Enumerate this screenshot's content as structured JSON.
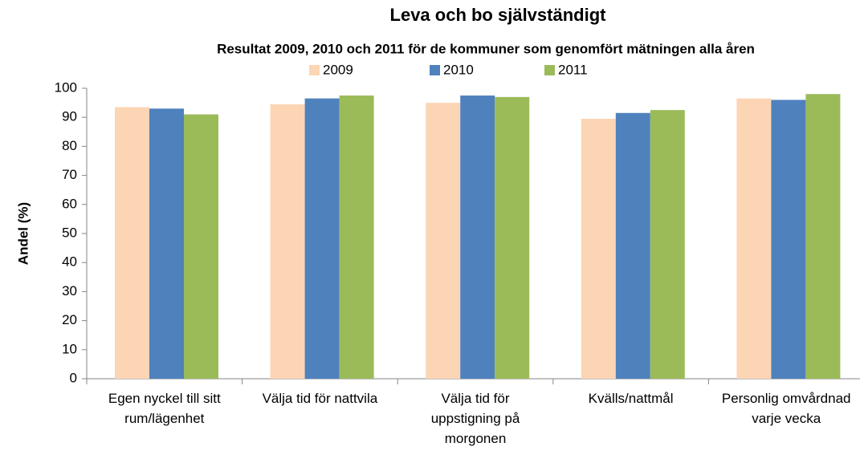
{
  "chart_data": {
    "type": "bar",
    "title": "Leva och bo självständigt",
    "subtitle": "Resultat 2009, 2010 och 2011 för de kommuner som genomfört mätningen alla åren",
    "y_label": "Andel (%)",
    "categories": [
      "Egen nyckel till sitt rum/lägenhet",
      "Välja tid för nattvila",
      "Välja tid för uppstigning på morgonen",
      "Kvälls/nattmål",
      "Personlig omvårdnad varje vecka"
    ],
    "series": [
      {
        "name": "2009",
        "color": "#fcd5b5",
        "values": [
          93.5,
          94.5,
          95,
          89.5,
          96.5
        ]
      },
      {
        "name": "2010",
        "color": "#4f81bd",
        "values": [
          93,
          96.5,
          97.5,
          91.5,
          96
        ]
      },
      {
        "name": "2011",
        "color": "#9bbb59",
        "values": [
          91,
          97.5,
          97,
          92.5,
          98
        ]
      }
    ],
    "ylim": [
      0,
      100
    ],
    "yticks": [
      0,
      10,
      20,
      30,
      40,
      50,
      60,
      70,
      80,
      90,
      100
    ],
    "grid": false,
    "legend": "top"
  }
}
